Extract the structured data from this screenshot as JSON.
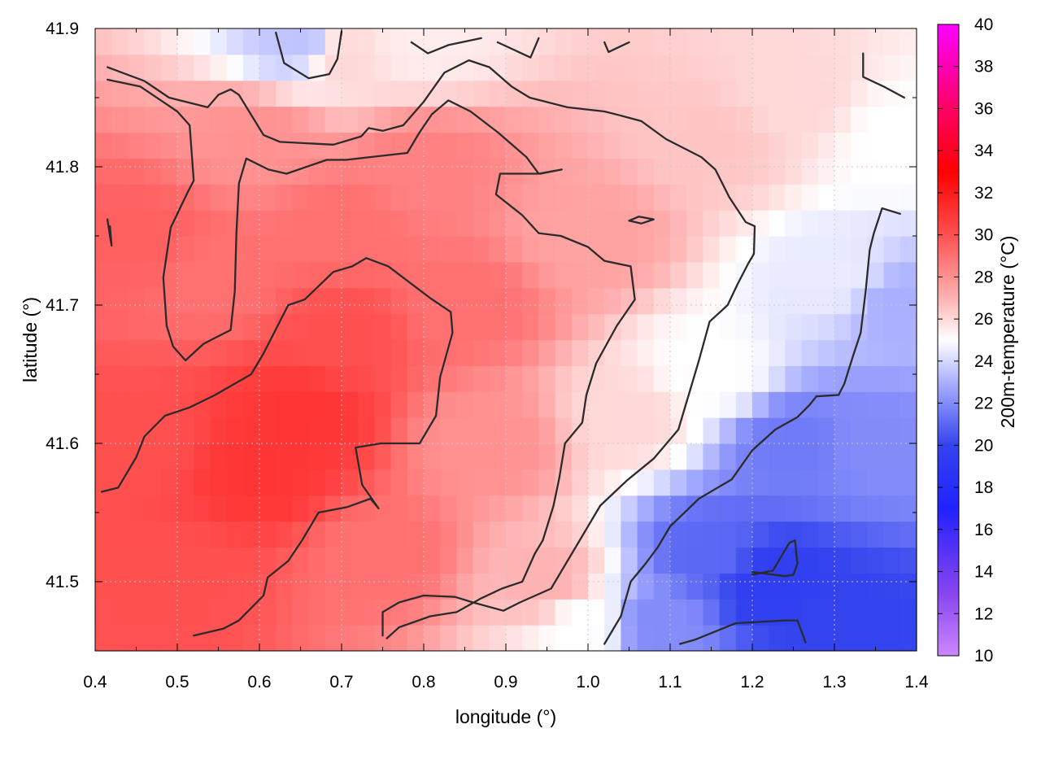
{
  "chart_data": {
    "type": "heatmap",
    "title": "",
    "xlabel": "longitude (°)",
    "ylabel": "latitude (°)",
    "colorbar_label": "200m-temperature (°C)",
    "xlim": [
      0.4,
      1.4
    ],
    "ylim": [
      41.45,
      41.9
    ],
    "x_ticks": [
      "0.4",
      "0.5",
      "0.6",
      "0.7",
      "0.8",
      "0.9",
      "1.0",
      "1.1",
      "1.2",
      "1.3",
      "1.4"
    ],
    "y_ticks": [
      "41.5",
      "41.6",
      "41.7",
      "41.8",
      "41.9"
    ],
    "colorbar_range": [
      10,
      40
    ],
    "colorbar_ticks": [
      "10",
      "12",
      "14",
      "16",
      "18",
      "20",
      "22",
      "24",
      "26",
      "28",
      "30",
      "32",
      "34",
      "36",
      "38",
      "40"
    ],
    "colorscale": [
      {
        "value": 10,
        "color": "#cc88ff"
      },
      {
        "value": 13,
        "color": "#8844ee"
      },
      {
        "value": 17,
        "color": "#2222ff"
      },
      {
        "value": 20,
        "color": "#3344ee"
      },
      {
        "value": 23,
        "color": "#aab0ff"
      },
      {
        "value": 25,
        "color": "#ffffff"
      },
      {
        "value": 27,
        "color": "#ffb2b2"
      },
      {
        "value": 30,
        "color": "#ff5050"
      },
      {
        "value": 33,
        "color": "#ff0000"
      },
      {
        "value": 36,
        "color": "#ff0066"
      },
      {
        "value": 40,
        "color": "#ff00ff"
      }
    ],
    "grid": true,
    "field_anchors": [
      {
        "lon": 0.45,
        "lat": 41.75,
        "temp": 29.5
      },
      {
        "lon": 0.45,
        "lat": 41.6,
        "temp": 30
      },
      {
        "lon": 0.5,
        "lat": 41.5,
        "temp": 30
      },
      {
        "lon": 0.6,
        "lat": 41.58,
        "temp": 31
      },
      {
        "lon": 0.65,
        "lat": 41.62,
        "temp": 31
      },
      {
        "lon": 0.7,
        "lat": 41.68,
        "temp": 30
      },
      {
        "lon": 0.55,
        "lat": 41.72,
        "temp": 29
      },
      {
        "lon": 0.6,
        "lat": 41.82,
        "temp": 28
      },
      {
        "lon": 0.7,
        "lat": 41.76,
        "temp": 29
      },
      {
        "lon": 0.8,
        "lat": 41.8,
        "temp": 28.5
      },
      {
        "lon": 0.85,
        "lat": 41.7,
        "temp": 29
      },
      {
        "lon": 0.75,
        "lat": 41.52,
        "temp": 29
      },
      {
        "lon": 0.88,
        "lat": 41.6,
        "temp": 28
      },
      {
        "lon": 0.95,
        "lat": 41.5,
        "temp": 27
      },
      {
        "lon": 1.0,
        "lat": 41.75,
        "temp": 27.5
      },
      {
        "lon": 1.05,
        "lat": 41.62,
        "temp": 26
      },
      {
        "lon": 1.0,
        "lat": 41.47,
        "temp": 25
      },
      {
        "lon": 0.7,
        "lat": 41.88,
        "temp": 26
      },
      {
        "lon": 0.65,
        "lat": 41.89,
        "temp": 23.5
      },
      {
        "lon": 0.8,
        "lat": 41.89,
        "temp": 25.5
      },
      {
        "lon": 1.15,
        "lat": 41.82,
        "temp": 26.5
      },
      {
        "lon": 1.25,
        "lat": 41.85,
        "temp": 26
      },
      {
        "lon": 1.3,
        "lat": 41.72,
        "temp": 24.5
      },
      {
        "lon": 1.38,
        "lat": 41.7,
        "temp": 23
      },
      {
        "lon": 1.15,
        "lat": 41.65,
        "temp": 25
      },
      {
        "lon": 1.25,
        "lat": 41.6,
        "temp": 21.5
      },
      {
        "lon": 1.35,
        "lat": 41.6,
        "temp": 22
      },
      {
        "lon": 1.15,
        "lat": 41.52,
        "temp": 21
      },
      {
        "lon": 1.22,
        "lat": 41.5,
        "temp": 19.5
      },
      {
        "lon": 1.33,
        "lat": 41.47,
        "temp": 20
      },
      {
        "lon": 1.08,
        "lat": 41.47,
        "temp": 22
      },
      {
        "lon": 1.38,
        "lat": 41.82,
        "temp": 25
      }
    ],
    "contours": [
      {
        "level": 26,
        "points": [
          [
            0.415,
            41.872
          ],
          [
            0.46,
            41.862
          ],
          [
            0.465,
            41.86
          ],
          [
            0.49,
            41.85
          ],
          [
            0.537,
            41.843
          ],
          [
            0.55,
            41.852
          ],
          [
            0.565,
            41.856
          ],
          [
            0.575,
            41.852
          ],
          [
            0.605,
            41.823
          ],
          [
            0.625,
            41.818
          ],
          [
            0.69,
            41.816
          ],
          [
            0.724,
            41.822
          ],
          [
            0.733,
            41.828
          ],
          [
            0.75,
            41.826
          ],
          [
            0.775,
            41.83
          ],
          [
            0.8,
            41.847
          ],
          [
            0.825,
            41.868
          ],
          [
            0.855,
            41.877
          ],
          [
            0.88,
            41.872
          ],
          [
            0.907,
            41.858
          ],
          [
            0.929,
            41.85
          ],
          [
            0.975,
            41.843
          ],
          [
            1.02,
            41.84
          ],
          [
            1.04,
            41.837
          ],
          [
            1.065,
            41.833
          ],
          [
            1.095,
            41.82
          ],
          [
            1.138,
            41.807
          ],
          [
            1.155,
            41.798
          ],
          [
            1.172,
            41.778
          ],
          [
            1.192,
            41.76
          ],
          [
            1.203,
            41.757
          ],
          [
            1.202,
            41.737
          ],
          [
            1.195,
            41.73
          ],
          [
            1.182,
            41.715
          ],
          [
            1.17,
            41.7
          ],
          [
            1.148,
            41.688
          ],
          [
            1.135,
            41.66
          ],
          [
            1.125,
            41.64
          ],
          [
            1.11,
            41.61
          ],
          [
            1.08,
            41.589
          ],
          [
            1.047,
            41.573
          ],
          [
            1.015,
            41.555
          ],
          [
            0.99,
            41.53
          ],
          [
            0.97,
            41.51
          ],
          [
            0.955,
            41.495
          ],
          [
            0.917,
            41.485
          ],
          [
            0.897,
            41.479
          ],
          [
            0.86,
            41.485
          ],
          [
            0.838,
            41.489
          ],
          [
            0.8,
            41.49
          ],
          [
            0.77,
            41.485
          ],
          [
            0.75,
            41.478
          ],
          [
            0.75,
            41.461
          ]
        ]
      },
      {
        "level": 28,
        "points": [
          [
            0.415,
            41.863
          ],
          [
            0.455,
            41.858
          ],
          [
            0.5,
            41.84
          ],
          [
            0.515,
            41.83
          ],
          [
            0.52,
            41.79
          ],
          [
            0.513,
            41.782
          ],
          [
            0.492,
            41.756
          ],
          [
            0.483,
            41.72
          ],
          [
            0.487,
            41.685
          ],
          [
            0.495,
            41.67
          ],
          [
            0.51,
            41.66
          ],
          [
            0.532,
            41.672
          ],
          [
            0.565,
            41.682
          ],
          [
            0.57,
            41.71
          ],
          [
            0.572,
            41.752
          ],
          [
            0.575,
            41.788
          ],
          [
            0.584,
            41.806
          ],
          [
            0.611,
            41.798
          ],
          [
            0.633,
            41.795
          ],
          [
            0.682,
            41.805
          ],
          [
            0.705,
            41.805
          ],
          [
            0.75,
            41.808
          ],
          [
            0.78,
            41.81
          ],
          [
            0.795,
            41.825
          ],
          [
            0.81,
            41.838
          ],
          [
            0.83,
            41.848
          ],
          [
            0.857,
            41.84
          ],
          [
            0.89,
            41.825
          ],
          [
            0.925,
            41.807
          ],
          [
            0.94,
            41.795
          ],
          [
            0.968,
            41.798
          ],
          [
            0.942,
            41.795
          ],
          [
            0.893,
            41.795
          ],
          [
            0.888,
            41.78
          ],
          [
            0.92,
            41.765
          ],
          [
            0.94,
            41.752
          ],
          [
            0.967,
            41.75
          ],
          [
            1.0,
            41.742
          ],
          [
            1.02,
            41.732
          ],
          [
            1.052,
            41.728
          ],
          [
            1.057,
            41.704
          ],
          [
            1.035,
            41.685
          ],
          [
            1.01,
            41.658
          ],
          [
            0.998,
            41.635
          ],
          [
            0.993,
            41.615
          ],
          [
            0.972,
            41.6
          ],
          [
            0.965,
            41.575
          ],
          [
            0.958,
            41.555
          ],
          [
            0.945,
            41.53
          ],
          [
            0.935,
            41.52
          ],
          [
            0.92,
            41.5
          ],
          [
            0.895,
            41.495
          ],
          [
            0.87,
            41.488
          ],
          [
            0.852,
            41.482
          ],
          [
            0.84,
            41.478
          ],
          [
            0.808,
            41.475
          ],
          [
            0.77,
            41.467
          ],
          [
            0.755,
            41.459
          ]
        ]
      },
      {
        "level": 28,
        "points": [
          [
            1.05,
            41.761
          ],
          [
            1.062,
            41.764
          ],
          [
            1.08,
            41.762
          ],
          [
            1.065,
            41.759
          ],
          [
            1.05,
            41.761
          ]
        ]
      },
      {
        "level": 30,
        "points": [
          [
            0.408,
            41.565
          ],
          [
            0.428,
            41.568
          ],
          [
            0.45,
            41.59
          ],
          [
            0.46,
            41.605
          ],
          [
            0.485,
            41.62
          ],
          [
            0.515,
            41.626
          ],
          [
            0.546,
            41.635
          ],
          [
            0.59,
            41.65
          ],
          [
            0.605,
            41.665
          ],
          [
            0.635,
            41.7
          ],
          [
            0.655,
            41.704
          ],
          [
            0.69,
            41.724
          ],
          [
            0.713,
            41.728
          ],
          [
            0.73,
            41.734
          ],
          [
            0.757,
            41.728
          ],
          [
            0.788,
            41.714
          ],
          [
            0.808,
            41.705
          ],
          [
            0.833,
            41.695
          ],
          [
            0.835,
            41.68
          ],
          [
            0.82,
            41.648
          ],
          [
            0.815,
            41.62
          ],
          [
            0.795,
            41.6
          ],
          [
            0.748,
            41.6
          ],
          [
            0.717,
            41.597
          ],
          [
            0.725,
            41.57
          ],
          [
            0.745,
            41.553
          ],
          [
            0.735,
            41.56
          ],
          [
            0.707,
            41.554
          ],
          [
            0.672,
            41.55
          ],
          [
            0.652,
            41.53
          ],
          [
            0.635,
            41.515
          ],
          [
            0.61,
            41.503
          ],
          [
            0.605,
            41.49
          ],
          [
            0.575,
            41.472
          ],
          [
            0.556,
            41.466
          ],
          [
            0.52,
            41.461
          ]
        ]
      },
      {
        "level": 30,
        "points": [
          [
            0.415,
            41.762
          ],
          [
            0.418,
            41.75
          ],
          [
            0.42,
            41.743
          ],
          [
            0.418,
            41.757
          ]
        ]
      },
      {
        "level": 26,
        "points": [
          [
            0.62,
            41.897
          ],
          [
            0.63,
            41.875
          ],
          [
            0.66,
            41.864
          ],
          [
            0.685,
            41.867
          ],
          [
            0.695,
            41.878
          ],
          [
            0.7,
            41.898
          ]
        ]
      },
      {
        "level": 26,
        "points": [
          [
            0.785,
            41.89
          ],
          [
            0.805,
            41.882
          ],
          [
            0.83,
            41.888
          ],
          [
            0.87,
            41.893
          ]
        ]
      },
      {
        "level": 26,
        "points": [
          [
            0.89,
            41.89
          ],
          [
            0.93,
            41.879
          ],
          [
            0.94,
            41.893
          ]
        ]
      },
      {
        "level": 26,
        "points": [
          [
            1.02,
            41.89
          ],
          [
            1.025,
            41.883
          ],
          [
            1.05,
            41.89
          ]
        ]
      },
      {
        "level": 26,
        "points": [
          [
            1.335,
            41.882
          ],
          [
            1.335,
            41.865
          ],
          [
            1.36,
            41.858
          ],
          [
            1.385,
            41.85
          ]
        ]
      },
      {
        "level": 24,
        "points": [
          [
            1.02,
            41.455
          ],
          [
            1.04,
            41.475
          ],
          [
            1.052,
            41.5
          ],
          [
            1.07,
            41.513
          ],
          [
            1.085,
            41.525
          ],
          [
            1.1,
            41.54
          ],
          [
            1.135,
            41.56
          ],
          [
            1.175,
            41.574
          ],
          [
            1.2,
            41.595
          ],
          [
            1.228,
            41.61
          ],
          [
            1.255,
            41.619
          ],
          [
            1.27,
            41.628
          ],
          [
            1.278,
            41.634
          ],
          [
            1.305,
            41.635
          ],
          [
            1.312,
            41.643
          ],
          [
            1.322,
            41.662
          ],
          [
            1.332,
            41.68
          ],
          [
            1.338,
            41.71
          ],
          [
            1.343,
            41.74
          ],
          [
            1.348,
            41.752
          ],
          [
            1.358,
            41.77
          ],
          [
            1.38,
            41.766
          ]
        ]
      },
      {
        "level": 22,
        "points": [
          [
            1.112,
            41.455
          ],
          [
            1.13,
            41.458
          ],
          [
            1.155,
            41.464
          ],
          [
            1.18,
            41.47
          ],
          [
            1.24,
            41.472
          ],
          [
            1.255,
            41.472
          ],
          [
            1.265,
            41.456
          ]
        ]
      },
      {
        "level": 22,
        "points": [
          [
            1.2,
            41.507
          ],
          [
            1.24,
            41.504
          ],
          [
            1.25,
            41.505
          ],
          [
            1.255,
            41.513
          ],
          [
            1.252,
            41.53
          ],
          [
            1.245,
            41.528
          ],
          [
            1.225,
            41.508
          ],
          [
            1.2,
            41.505
          ]
        ]
      }
    ]
  }
}
